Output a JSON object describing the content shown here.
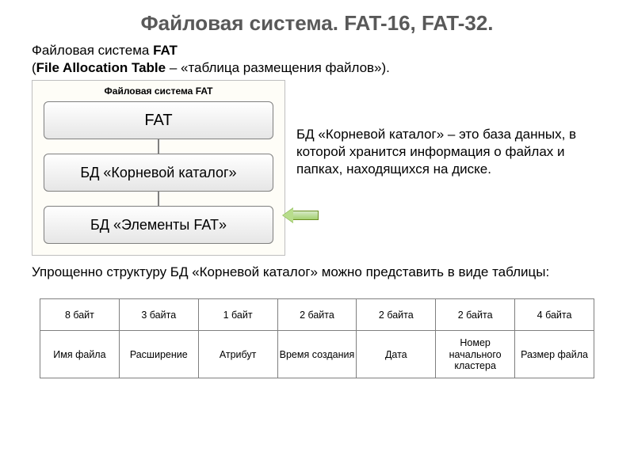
{
  "title": "Файловая система. FAT-16, FAT-32.",
  "intro_line1_a": "Файловая система ",
  "intro_line1_b": "FAT",
  "intro_line2_a": "(",
  "intro_line2_b": "File Allocation Table",
  "intro_line2_c": " – «таблица размещения файлов»).",
  "diagram": {
    "caption": "Файловая система FAT",
    "nodes": [
      "FAT",
      "БД «Корневой каталог»",
      "БД «Элементы FAT»"
    ],
    "node_gradient_top": "#ffffff",
    "node_gradient_bottom": "#e6e6e6",
    "node_border": "#7f7f7f",
    "frame_border": "#bfbfbf",
    "frame_bg": "#fefdf7"
  },
  "arrow": {
    "fill_top": "#d6e9c6",
    "fill_bottom": "#a4d070",
    "border": "#6b8e23"
  },
  "side_note": "БД «Корневой каталог» – это база данных, в которой хранится информация о файлах и папках, находящихся на диске.",
  "paragraph": "Упрощенно структуру БД «Корневой каталог» можно представить в виде таблицы:",
  "table": {
    "row1": [
      "8 байт",
      "3 байта",
      "1 байт",
      "2 байта",
      "2 байта",
      "2 байта",
      "4 байта"
    ],
    "row2": [
      "Имя файла",
      "Расширение",
      "Атрибут",
      "Время создания",
      "Дата",
      "Номер начального кластера",
      "Размер файла"
    ],
    "border_color": "#7f7f7f",
    "cell_bg": "#ffffff",
    "font_size_pt": 9.5
  },
  "colors": {
    "title_color": "#595959",
    "text_color": "#000000",
    "background": "#ffffff"
  }
}
